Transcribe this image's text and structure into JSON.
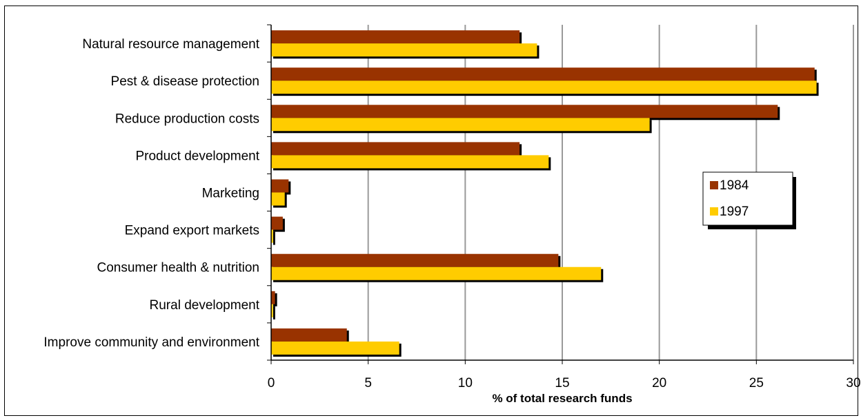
{
  "chart_data": {
    "type": "bar",
    "orientation": "horizontal",
    "categories": [
      "Natural resource management",
      "Pest & disease protection",
      "Reduce production costs",
      "Product development",
      "Marketing",
      "Expand export markets",
      "Consumer health & nutrition",
      "Rural development",
      "Improve community and environment"
    ],
    "series": [
      {
        "name": "1984",
        "color": "#993300",
        "values": [
          12.8,
          28.0,
          26.1,
          12.8,
          0.9,
          0.6,
          14.8,
          0.2,
          3.9
        ]
      },
      {
        "name": "1997",
        "color": "#FFCC00",
        "values": [
          13.7,
          28.1,
          19.5,
          14.3,
          0.7,
          0.1,
          17.0,
          0.1,
          6.6
        ]
      }
    ],
    "xlabel": "% of total research funds",
    "ylabel": "",
    "xlim": [
      0,
      30
    ],
    "xticks": [
      "0",
      "5",
      "10",
      "15",
      "20",
      "25",
      "30"
    ],
    "grid": "vertical",
    "legend_position": "right"
  }
}
